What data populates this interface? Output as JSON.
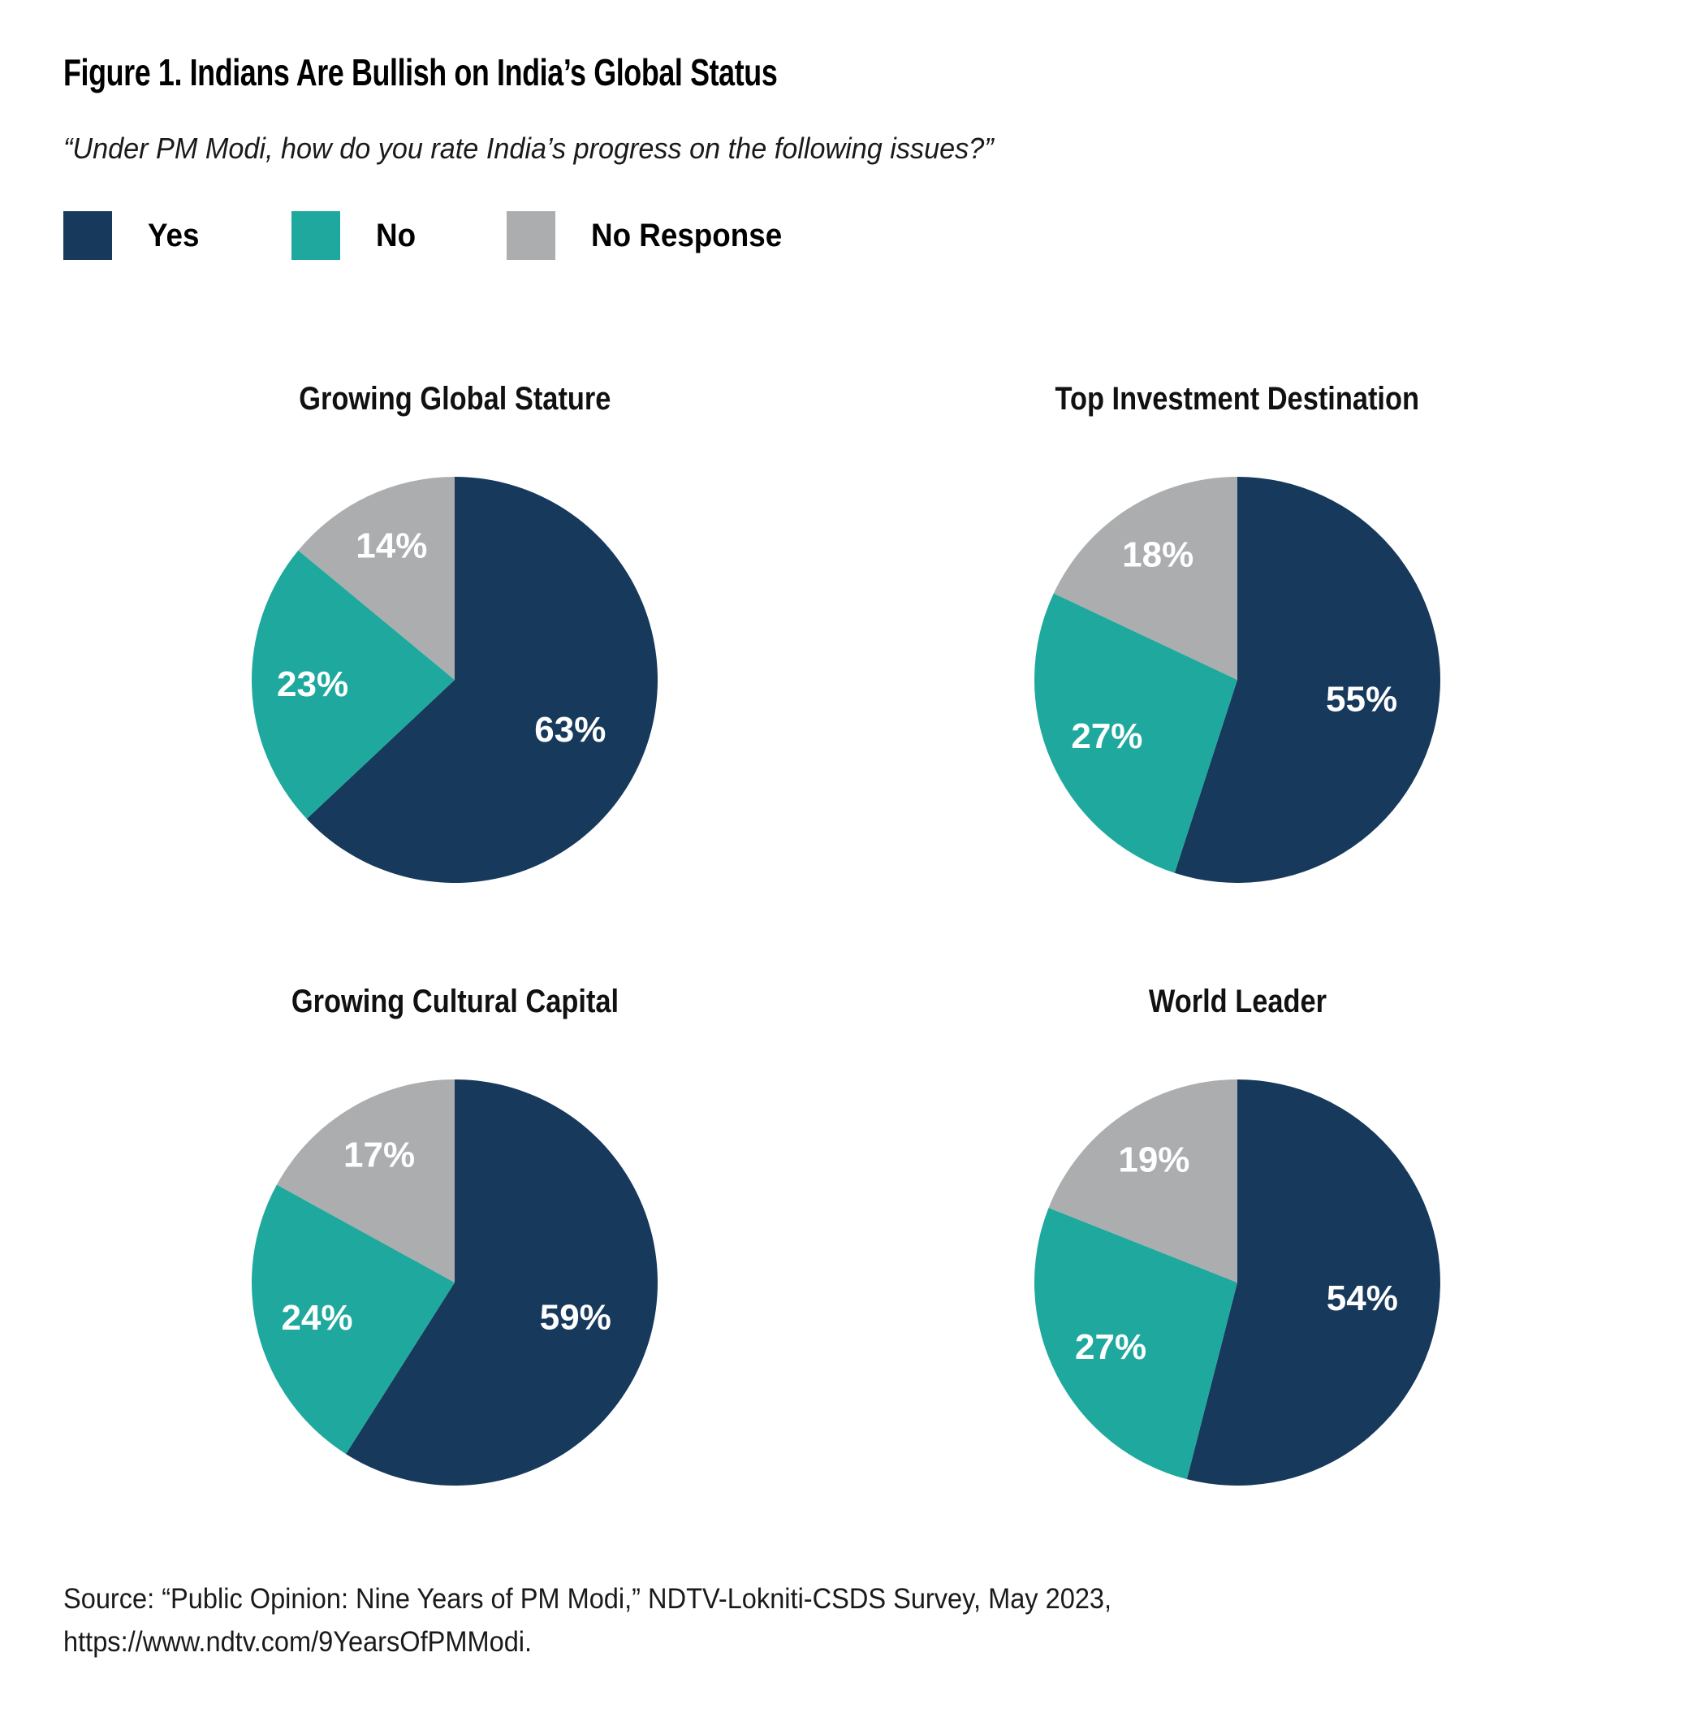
{
  "figure": {
    "title": "Figure 1. Indians Are Bullish on India’s Global Status",
    "subtitle": "“Under PM Modi, how do you rate India’s progress on the following issues?”",
    "source_line1": "Source: “Public Opinion: Nine Years of PM Modi,” NDTV-Lokniti-CSDS Survey, May 2023,",
    "source_line2": "https://www.ndtv.com/9YearsOfPMModi."
  },
  "colors": {
    "yes": "#17395C",
    "no": "#1FA99E",
    "no_response": "#ABADAF",
    "value_label": "#FFFFFF"
  },
  "legend": {
    "items": [
      {
        "label": "Yes",
        "color": "#17395C"
      },
      {
        "label": "No",
        "color": "#1FA99E"
      },
      {
        "label": "No Response",
        "color": "#ABADAF"
      }
    ]
  },
  "chart_data": [
    {
      "type": "pie",
      "title": "Growing Global Stature",
      "labels": [
        "Yes",
        "No",
        "No Response"
      ],
      "values": [
        63,
        23,
        14
      ],
      "value_labels": [
        "63%",
        "23%",
        "14%"
      ],
      "colors": [
        "#17395C",
        "#1FA99E",
        "#ABADAF"
      ],
      "start_angle": "12-o-clock",
      "direction": "clockwise",
      "legend_position": "top-shared"
    },
    {
      "type": "pie",
      "title": "Top Investment Destination",
      "labels": [
        "Yes",
        "No",
        "No Response"
      ],
      "values": [
        55,
        27,
        18
      ],
      "value_labels": [
        "55%",
        "27%",
        "18%"
      ],
      "colors": [
        "#17395C",
        "#1FA99E",
        "#ABADAF"
      ],
      "start_angle": "12-o-clock",
      "direction": "clockwise",
      "legend_position": "top-shared"
    },
    {
      "type": "pie",
      "title": "Growing Cultural Capital",
      "labels": [
        "Yes",
        "No",
        "No Response"
      ],
      "values": [
        59,
        24,
        17
      ],
      "value_labels": [
        "59%",
        "24%",
        "17%"
      ],
      "colors": [
        "#17395C",
        "#1FA99E",
        "#ABADAF"
      ],
      "start_angle": "12-o-clock",
      "direction": "clockwise",
      "legend_position": "top-shared"
    },
    {
      "type": "pie",
      "title": "World Leader",
      "labels": [
        "Yes",
        "No",
        "No Response"
      ],
      "values": [
        54,
        27,
        19
      ],
      "value_labels": [
        "54%",
        "27%",
        "19%"
      ],
      "colors": [
        "#17395C",
        "#1FA99E",
        "#ABADAF"
      ],
      "start_angle": "12-o-clock",
      "direction": "clockwise",
      "legend_position": "top-shared"
    }
  ]
}
